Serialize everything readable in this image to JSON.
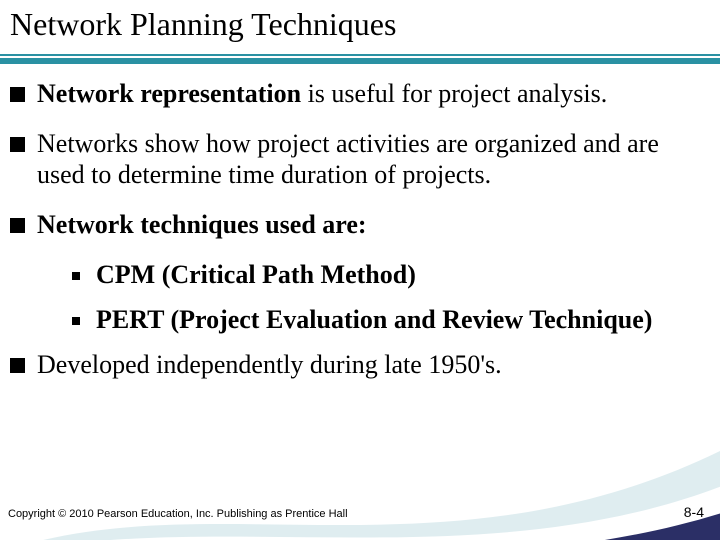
{
  "slide": {
    "title": "Network Planning Techniques",
    "rule_color": "#2a91a3",
    "swoosh_colors": {
      "dark": "#2b2f66",
      "light": "#d2e6ea",
      "white": "#ffffff"
    },
    "bullets": [
      {
        "level": 1,
        "runs": [
          {
            "text": "Network representation",
            "bold": true
          },
          {
            "text": " is useful for project analysis.",
            "bold": false
          }
        ]
      },
      {
        "level": 1,
        "runs": [
          {
            "text": "Networks show how project activities are organized and are used to determine time duration of projects.",
            "bold": false
          }
        ]
      },
      {
        "level": 1,
        "runs": [
          {
            "text": "Network techniques used are:",
            "bold": true
          }
        ]
      },
      {
        "level": 2,
        "runs": [
          {
            "text": " CPM (Critical Path Method)",
            "bold": true
          }
        ]
      },
      {
        "level": 2,
        "runs": [
          {
            "text": " PERT (Project Evaluation and Review Technique)",
            "bold": true
          }
        ]
      },
      {
        "level": 1,
        "runs": [
          {
            "text": "Developed independently during late 1950's.",
            "bold": false
          }
        ]
      }
    ],
    "copyright": "Copyright © 2010 Pearson Education, Inc. Publishing as Prentice Hall",
    "slide_number": "8-4",
    "title_fontsize": 32,
    "body_fontsize": 26,
    "background": "#ffffff",
    "text_color": "#000000"
  }
}
